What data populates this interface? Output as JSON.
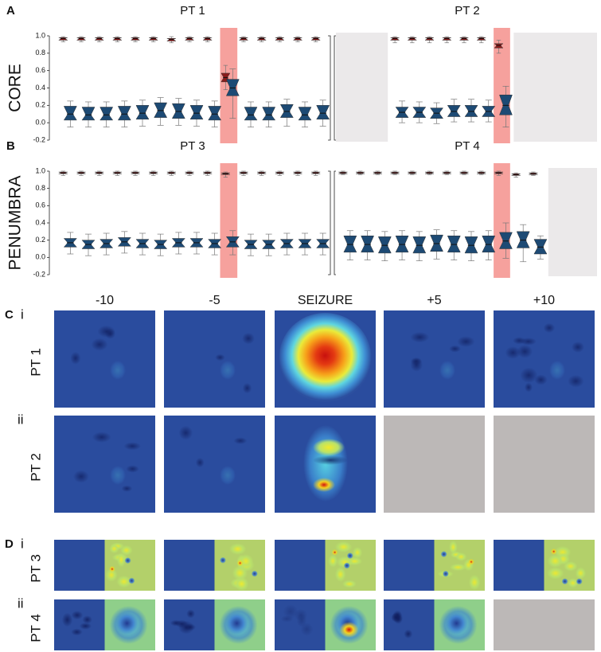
{
  "chart_data": [
    {
      "type": "box",
      "panel": "A",
      "title": "PT 1",
      "ylabel": "CORE",
      "highlight_index": 9,
      "categories": [
        null,
        null,
        null,
        null,
        null,
        null,
        null,
        null,
        null,
        null,
        null,
        null,
        null,
        null,
        null
      ],
      "ylim": [
        -0.2,
        1.0
      ],
      "yticks": [
        -0.2,
        {
          "value": 0,
          "label": "0.0"
        },
        0.2,
        0.4,
        0.6,
        0.8,
        {
          "value": 1,
          "label": "1.0"
        }
      ],
      "series": [
        {
          "color": "#8b1c1c",
          "values": [
            0.97,
            0.97,
            0.97,
            0.97,
            0.97,
            0.97,
            0.96,
            0.97,
            0.97,
            0.52,
            0.97,
            0.97,
            0.97,
            0.97,
            0.97
          ],
          "q1": [
            0.95,
            0.95,
            0.95,
            0.95,
            0.95,
            0.95,
            0.94,
            0.95,
            0.95,
            0.47,
            0.95,
            0.95,
            0.95,
            0.95,
            0.95
          ],
          "q3": [
            0.98,
            0.98,
            0.98,
            0.98,
            0.98,
            0.98,
            0.97,
            0.98,
            0.98,
            0.57,
            0.98,
            0.98,
            0.98,
            0.98,
            0.98
          ],
          "whislo": [
            0.93,
            0.93,
            0.93,
            0.93,
            0.93,
            0.93,
            0.92,
            0.93,
            0.93,
            0.38,
            0.93,
            0.93,
            0.93,
            0.93,
            0.93
          ],
          "whishi": [
            0.99,
            0.99,
            0.99,
            0.99,
            0.99,
            0.99,
            0.99,
            0.99,
            0.99,
            0.66,
            0.99,
            0.99,
            0.99,
            0.99,
            0.99
          ]
        },
        {
          "color": "#1d4a74",
          "values": [
            0.1,
            0.09,
            0.09,
            0.1,
            0.11,
            0.14,
            0.13,
            0.11,
            0.1,
            0.4,
            0.09,
            0.09,
            0.13,
            0.09,
            0.11
          ],
          "q1": [
            0.03,
            0.03,
            0.03,
            0.03,
            0.04,
            0.06,
            0.05,
            0.04,
            0.03,
            0.31,
            0.03,
            0.03,
            0.06,
            0.03,
            0.04
          ],
          "q3": [
            0.19,
            0.18,
            0.18,
            0.19,
            0.2,
            0.23,
            0.22,
            0.2,
            0.19,
            0.5,
            0.18,
            0.18,
            0.21,
            0.18,
            0.2
          ],
          "whislo": [
            -0.05,
            -0.05,
            -0.05,
            -0.05,
            -0.04,
            -0.03,
            -0.03,
            -0.04,
            -0.05,
            0.05,
            -0.05,
            -0.05,
            -0.04,
            -0.05,
            -0.04
          ],
          "whishi": [
            0.25,
            0.24,
            0.24,
            0.25,
            0.26,
            0.29,
            0.28,
            0.26,
            0.25,
            0.62,
            0.24,
            0.24,
            0.27,
            0.24,
            0.26
          ]
        }
      ]
    },
    {
      "type": "box",
      "title": "PT 2",
      "highlight_index": 9,
      "categories": [
        null,
        null,
        null,
        null,
        null,
        null,
        null,
        null,
        null,
        null,
        null,
        null,
        null,
        null,
        null
      ],
      "ylim": [
        -0.2,
        1.0
      ],
      "series": [
        {
          "color": "#8b1c1c",
          "values": [
            null,
            null,
            null,
            0.97,
            0.97,
            0.97,
            0.97,
            0.97,
            0.97,
            0.89,
            null,
            null,
            null,
            null,
            null
          ],
          "q1": [
            null,
            null,
            null,
            0.95,
            0.95,
            0.95,
            0.95,
            0.95,
            0.95,
            0.86,
            null,
            null,
            null,
            null,
            null
          ],
          "q3": [
            null,
            null,
            null,
            0.98,
            0.98,
            0.98,
            0.98,
            0.98,
            0.98,
            0.91,
            null,
            null,
            null,
            null,
            null
          ],
          "whislo": [
            null,
            null,
            null,
            0.92,
            0.92,
            0.92,
            0.92,
            0.92,
            0.92,
            0.8,
            null,
            null,
            null,
            null,
            null
          ],
          "whishi": [
            null,
            null,
            null,
            0.99,
            0.99,
            0.99,
            0.99,
            0.99,
            0.99,
            0.95,
            null,
            null,
            null,
            null,
            null
          ]
        },
        {
          "color": "#1d4a74",
          "values": [
            null,
            null,
            null,
            0.12,
            0.12,
            0.11,
            0.13,
            0.13,
            0.13,
            0.2,
            null,
            null,
            null,
            null,
            null
          ],
          "q1": [
            null,
            null,
            null,
            0.06,
            0.06,
            0.05,
            0.07,
            0.07,
            0.07,
            0.09,
            null,
            null,
            null,
            null,
            null
          ],
          "q3": [
            null,
            null,
            null,
            0.18,
            0.18,
            0.17,
            0.2,
            0.2,
            0.19,
            0.32,
            null,
            null,
            null,
            null,
            null
          ],
          "whislo": [
            null,
            null,
            null,
            0.0,
            0.0,
            -0.01,
            0.01,
            0.01,
            0.01,
            -0.05,
            null,
            null,
            null,
            null,
            null
          ],
          "whishi": [
            null,
            null,
            null,
            0.25,
            0.24,
            0.23,
            0.27,
            0.27,
            0.26,
            0.42,
            null,
            null,
            null,
            null,
            null
          ]
        }
      ]
    },
    {
      "type": "box",
      "panel": "B",
      "title": "PT 3",
      "ylabel": "PENUMBRA",
      "highlight_index": 9,
      "categories": [
        null,
        null,
        null,
        null,
        null,
        null,
        null,
        null,
        null,
        null,
        null,
        null,
        null,
        null,
        null
      ],
      "ylim": [
        -0.2,
        1.0
      ],
      "yticks": [
        -0.2,
        {
          "value": 0,
          "label": "0.0"
        },
        0.2,
        0.4,
        0.6,
        0.8,
        {
          "value": 1,
          "label": "1.0"
        }
      ],
      "series": [
        {
          "color": "#8b1c1c",
          "values": [
            0.98,
            0.98,
            0.98,
            0.98,
            0.98,
            0.98,
            0.98,
            0.98,
            0.98,
            0.97,
            0.98,
            0.98,
            0.98,
            0.98,
            0.98
          ],
          "q1": [
            0.97,
            0.97,
            0.97,
            0.97,
            0.97,
            0.97,
            0.97,
            0.97,
            0.97,
            0.96,
            0.97,
            0.97,
            0.97,
            0.97,
            0.97
          ],
          "q3": [
            0.99,
            0.99,
            0.99,
            0.99,
            0.99,
            0.99,
            0.99,
            0.99,
            0.99,
            0.98,
            0.99,
            0.99,
            0.99,
            0.99,
            0.99
          ],
          "whislo": [
            0.95,
            0.95,
            0.95,
            0.95,
            0.95,
            0.95,
            0.95,
            0.95,
            0.95,
            0.93,
            0.95,
            0.95,
            0.95,
            0.95,
            0.95
          ],
          "whishi": [
            1,
            1,
            1,
            1,
            1,
            1,
            1,
            1,
            1,
            0.99,
            1,
            1,
            1,
            1,
            1
          ]
        },
        {
          "color": "#1d4a74",
          "values": [
            0.17,
            0.15,
            0.16,
            0.18,
            0.16,
            0.15,
            0.17,
            0.17,
            0.16,
            0.18,
            0.15,
            0.15,
            0.16,
            0.16,
            0.16
          ],
          "q1": [
            0.12,
            0.1,
            0.11,
            0.13,
            0.11,
            0.1,
            0.12,
            0.12,
            0.11,
            0.12,
            0.1,
            0.1,
            0.11,
            0.11,
            0.11
          ],
          "q3": [
            0.22,
            0.2,
            0.21,
            0.23,
            0.21,
            0.2,
            0.22,
            0.22,
            0.21,
            0.24,
            0.2,
            0.2,
            0.21,
            0.21,
            0.21
          ],
          "whislo": [
            0.04,
            0.02,
            0.03,
            0.05,
            0.03,
            0.02,
            0.04,
            0.04,
            0.03,
            0.03,
            0.02,
            0.02,
            0.03,
            0.03,
            0.03
          ],
          "whishi": [
            0.29,
            0.27,
            0.28,
            0.3,
            0.28,
            0.27,
            0.29,
            0.29,
            0.28,
            0.31,
            0.27,
            0.27,
            0.28,
            0.28,
            0.28
          ]
        }
      ]
    },
    {
      "type": "box",
      "title": "PT 4",
      "highlight_index": 9,
      "categories": [
        null,
        null,
        null,
        null,
        null,
        null,
        null,
        null,
        null,
        null,
        null,
        null,
        null,
        null,
        null
      ],
      "ylim": [
        -0.2,
        1.0
      ],
      "series": [
        {
          "color": "#8b1c1c",
          "values": [
            0.98,
            0.98,
            0.98,
            0.98,
            0.98,
            0.98,
            0.98,
            0.98,
            0.98,
            0.98,
            0.96,
            0.97,
            null,
            null,
            null
          ],
          "q1": [
            0.97,
            0.97,
            0.97,
            0.97,
            0.97,
            0.97,
            0.97,
            0.97,
            0.97,
            0.97,
            0.95,
            0.96,
            null,
            null,
            null
          ],
          "q3": [
            0.99,
            0.99,
            0.99,
            0.99,
            0.99,
            0.99,
            0.99,
            0.99,
            0.99,
            0.99,
            0.97,
            0.98,
            null,
            null,
            null
          ],
          "whislo": [
            0.96,
            0.96,
            0.96,
            0.96,
            0.96,
            0.96,
            0.96,
            0.96,
            0.96,
            0.95,
            0.93,
            0.95,
            null,
            null,
            null
          ],
          "whishi": [
            1,
            1,
            1,
            1,
            1,
            1,
            1,
            1,
            1,
            1,
            0.98,
            0.99,
            null,
            null,
            null
          ]
        },
        {
          "color": "#1d4a74",
          "values": [
            0.15,
            0.15,
            0.14,
            0.15,
            0.14,
            0.16,
            0.15,
            0.14,
            0.15,
            0.19,
            0.2,
            0.12,
            null,
            null,
            null
          ],
          "q1": [
            0.06,
            0.06,
            0.05,
            0.06,
            0.05,
            0.07,
            0.06,
            0.05,
            0.06,
            0.1,
            0.11,
            0.04,
            null,
            null,
            null
          ],
          "q3": [
            0.25,
            0.25,
            0.24,
            0.25,
            0.24,
            0.26,
            0.25,
            0.24,
            0.25,
            0.29,
            0.3,
            0.21,
            null,
            null,
            null
          ],
          "whislo": [
            -0.03,
            -0.03,
            -0.04,
            -0.03,
            -0.04,
            -0.02,
            -0.03,
            -0.04,
            -0.03,
            -0.01,
            -0.05,
            -0.02,
            null,
            null,
            null
          ],
          "whishi": [
            0.31,
            0.31,
            0.3,
            0.31,
            0.3,
            0.32,
            0.31,
            0.3,
            0.31,
            0.4,
            0.38,
            0.25,
            null,
            null,
            null
          ]
        }
      ]
    }
  ],
  "heatmap_panel": {
    "columns": [
      "-10",
      "-5",
      "SEIZURE",
      "+5",
      "+10"
    ],
    "rows": [
      {
        "panel": "C",
        "sub": "i",
        "label": "PT 1",
        "style": "map",
        "missing_columns": []
      },
      {
        "sub": "ii",
        "label": "PT 2",
        "style": "map",
        "missing_columns": [
          3,
          4
        ]
      },
      {
        "panel": "D",
        "sub": "i",
        "label": "PT 3",
        "style": "split",
        "missing_columns": []
      },
      {
        "sub": "ii",
        "label": "PT 4",
        "style": "split",
        "missing_columns": [
          4
        ]
      }
    ]
  }
}
